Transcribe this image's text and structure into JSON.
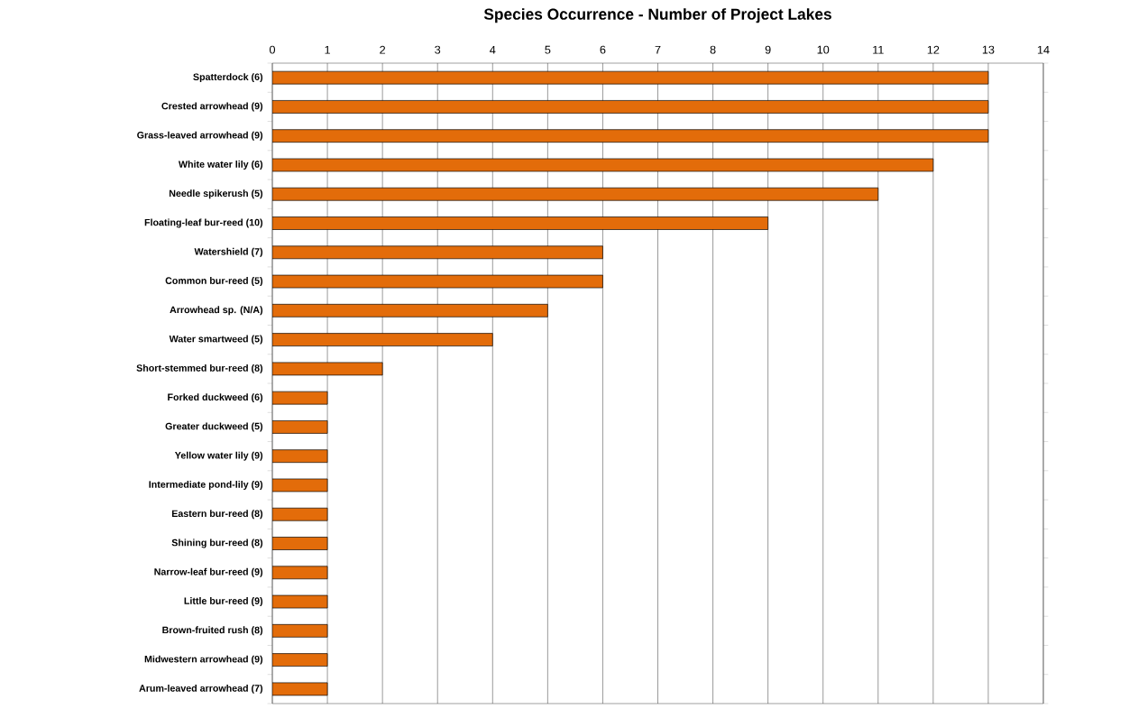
{
  "chart_data": {
    "type": "bar",
    "orientation": "horizontal",
    "title": "Species Occurrence - Number of Project Lakes",
    "categories": [
      "Spatterdock (6)",
      "Crested arrowhead (9)",
      "Grass-leaved arrowhead (9)",
      "White water lily (6)",
      "Needle spikerush (5)",
      "Floating-leaf bur-reed (10)",
      "Watershield (7)",
      "Common bur-reed (5)",
      "Arrowhead sp. (N/A)",
      "Water smartweed (5)",
      "Short-stemmed bur-reed (8)",
      "Forked duckweed (6)",
      "Greater duckweed (5)",
      "Yellow water lily (9)",
      "Intermediate pond-lily (9)",
      "Eastern bur-reed (8)",
      "Shining bur-reed (8)",
      "Narrow-leaf bur-reed (9)",
      "Little bur-reed (9)",
      "Brown-fruited rush (8)",
      "Midwestern arrowhead (9)",
      "Arum-leaved arrowhead (7)"
    ],
    "values": [
      13,
      13,
      13,
      12,
      11,
      9,
      6,
      6,
      5,
      4,
      2,
      1,
      1,
      1,
      1,
      1,
      1,
      1,
      1,
      1,
      1,
      1
    ],
    "color": "#e36c0a",
    "xlim": [
      0,
      14
    ],
    "xticks": [
      0,
      1,
      2,
      3,
      4,
      5,
      6,
      7,
      8,
      9,
      10,
      11,
      12,
      13,
      14
    ],
    "grid": "x"
  }
}
